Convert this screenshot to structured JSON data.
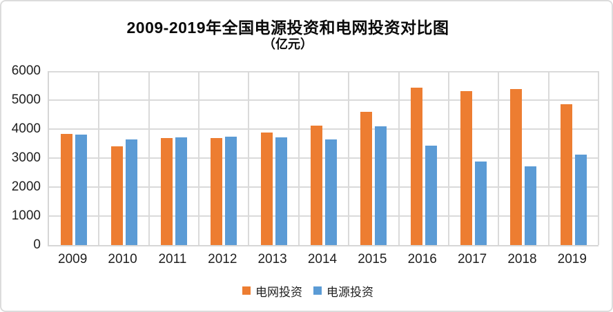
{
  "chart": {
    "title": "2009-2019年全国电源投资和电网投资对比图",
    "subtitle": "（亿元）"
  },
  "chart_data": {
    "type": "bar",
    "title": "2009-2019年全国电源投资和电网投资对比图",
    "subtitle": "（亿元）",
    "unit": "亿元",
    "categories": [
      "2009",
      "2010",
      "2011",
      "2012",
      "2013",
      "2014",
      "2015",
      "2016",
      "2017",
      "2018",
      "2019"
    ],
    "series": [
      {
        "name": "电网投资",
        "color": "#ED7D31",
        "values": [
          3830,
          3410,
          3680,
          3690,
          3880,
          4120,
          4600,
          5430,
          5320,
          5370,
          4850
        ]
      },
      {
        "name": "电源投资",
        "color": "#5B9BD5",
        "values": [
          3800,
          3650,
          3710,
          3750,
          3710,
          3650,
          4090,
          3430,
          2890,
          2720,
          3130
        ]
      }
    ],
    "ylim": [
      0,
      6000
    ],
    "ytick_step": 1000,
    "yticks": [
      0,
      1000,
      2000,
      3000,
      4000,
      5000,
      6000
    ],
    "grid": true,
    "legend_position": "bottom"
  }
}
